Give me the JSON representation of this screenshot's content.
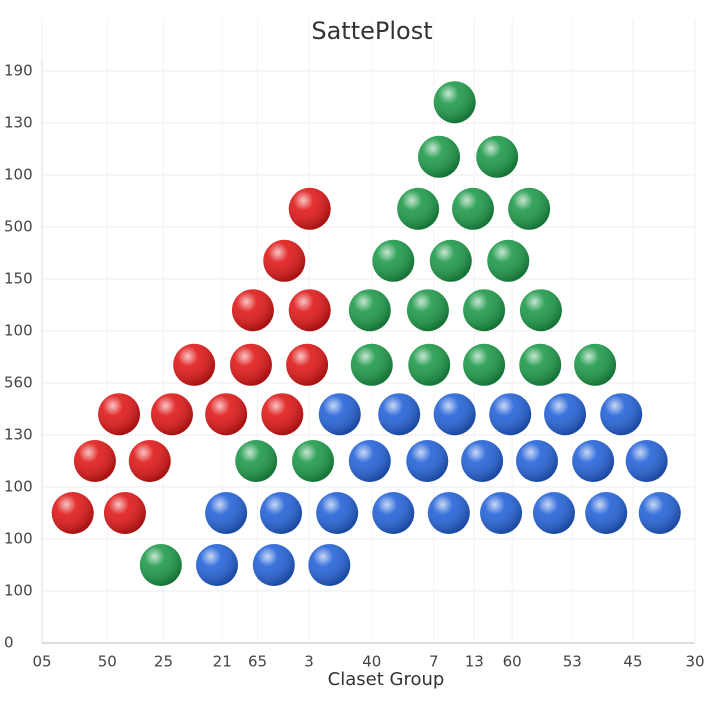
{
  "chart_data": {
    "type": "scatter",
    "title": "SattePlost",
    "xlabel": "Claset Group",
    "xlim": [
      0,
      100
    ],
    "ylim": [
      0,
      12
    ],
    "grid": true,
    "xticks": [
      {
        "value": 0,
        "label": "05"
      },
      {
        "value": 10,
        "label": "50"
      },
      {
        "value": 18.6,
        "label": "25"
      },
      {
        "value": 27.6,
        "label": "21"
      },
      {
        "value": 33,
        "label": "65"
      },
      {
        "value": 40.9,
        "label": "3"
      },
      {
        "value": 50.5,
        "label": "40"
      },
      {
        "value": 60,
        "label": "7"
      },
      {
        "value": 66.2,
        "label": "13"
      },
      {
        "value": 72,
        "label": "60"
      },
      {
        "value": 81.2,
        "label": "53"
      },
      {
        "value": 90.5,
        "label": "45"
      },
      {
        "value": 100,
        "label": "30"
      }
    ],
    "yticks": [
      0,
      {
        "value": 1,
        "label": "100"
      },
      {
        "value": 2,
        "label": "100"
      },
      {
        "value": 3,
        "label": "100"
      },
      {
        "value": 4,
        "label": "130"
      },
      {
        "value": 5,
        "label": "560"
      },
      {
        "value": 6,
        "label": "100"
      },
      {
        "value": 7,
        "label": "150"
      },
      {
        "value": 8,
        "label": "500"
      },
      {
        "value": 9,
        "label": "100"
      },
      {
        "value": 10,
        "label": "130"
      },
      {
        "value": 11,
        "label": "190"
      }
    ],
    "series": [
      {
        "color": "#e01818",
        "x": [
          4.7,
          12.7,
          8.1,
          16.5,
          11.8,
          19.9,
          28.2,
          36.8,
          23.3,
          32.0,
          40.6,
          32.3,
          41.0,
          37.1,
          41.0
        ],
        "values": [
          2.5,
          2.5,
          3.5,
          3.5,
          4.4,
          4.4,
          4.4,
          4.4,
          5.35,
          5.35,
          5.35,
          6.4,
          6.4,
          7.35,
          8.35
        ]
      },
      {
        "color": "#1e9a4a",
        "x": [
          18.2,
          32.8,
          41.5,
          50.5,
          59.3,
          67.7,
          76.3,
          84.7,
          50.2,
          59.1,
          67.7,
          76.4,
          53.8,
          62.6,
          71.4,
          57.6,
          66.0,
          74.6,
          60.8,
          69.7,
          63.2
        ],
        "values": [
          1.5,
          3.5,
          3.5,
          5.35,
          5.35,
          5.35,
          5.35,
          5.35,
          6.4,
          6.4,
          6.4,
          6.4,
          7.35,
          7.35,
          7.35,
          8.35,
          8.35,
          8.35,
          9.35,
          9.35,
          10.4
        ]
      },
      {
        "color": "#2563d8",
        "x": [
          26.8,
          35.5,
          44.0,
          28.2,
          36.6,
          45.2,
          53.8,
          62.3,
          70.3,
          78.4,
          86.4,
          94.6,
          50.2,
          59.0,
          67.4,
          75.8,
          84.4,
          92.6,
          45.6,
          54.7,
          63.2,
          71.7,
          80.1,
          88.7
        ],
        "values": [
          1.5,
          1.5,
          1.5,
          2.5,
          2.5,
          2.5,
          2.5,
          2.5,
          2.5,
          2.5,
          2.5,
          2.5,
          3.5,
          3.5,
          3.5,
          3.5,
          3.5,
          3.5,
          4.4,
          4.4,
          4.4,
          4.4,
          4.4,
          4.4
        ]
      }
    ]
  }
}
